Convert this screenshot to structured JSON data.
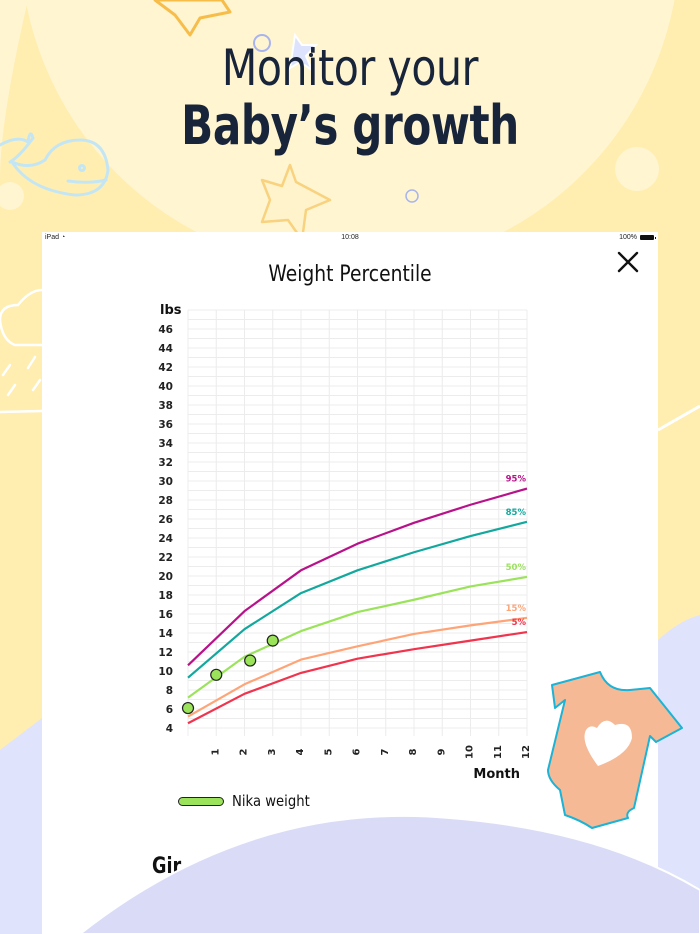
{
  "hero": {
    "line1": "Monitor your",
    "line2": "Baby’s growth"
  },
  "statusbar": {
    "device": "iPad",
    "time": "10:08",
    "battery": "100%"
  },
  "screen": {
    "title": "Weight Percentile",
    "close_icon": "close-icon",
    "legend_label": "Nika weight",
    "section_heading_partial": "Gir"
  },
  "colors": {
    "background": "#ffeeb0",
    "text_dark": "#18243a",
    "p95": "#b8128a",
    "p85": "#13a89e",
    "p50": "#9be35a",
    "p15": "#ffa477",
    "p5": "#f0344e",
    "point_fill": "#9be35a",
    "onesie": "#f5b995",
    "onesie_outline": "#1bb3d6",
    "lavender": "#dcdef8"
  },
  "chart_data": {
    "type": "line",
    "title": "Weight Percentile",
    "xlabel": "Month",
    "ylabel": "lbs",
    "x": [
      0,
      1,
      2,
      3,
      4,
      5,
      6,
      7,
      8,
      9,
      10,
      11,
      12
    ],
    "x_tick_labels": [
      "1",
      "2",
      "3",
      "4",
      "5",
      "6",
      "7",
      "8",
      "9",
      "10",
      "11",
      "12"
    ],
    "y_tick_labels": [
      "46",
      "44",
      "42",
      "40",
      "38",
      "36",
      "34",
      "32",
      "30",
      "28",
      "26",
      "24",
      "22",
      "20",
      "18",
      "16",
      "14",
      "12",
      "10",
      "8",
      "6",
      "4"
    ],
    "xlim": [
      0,
      12
    ],
    "ylim": [
      3,
      48
    ],
    "grid": true,
    "series": [
      {
        "name": "95%",
        "color": "#b8128a",
        "x": [
          0,
          2,
          4,
          6,
          8,
          10,
          12
        ],
        "values": [
          10.6,
          16.3,
          20.6,
          23.4,
          25.6,
          27.5,
          29.2
        ]
      },
      {
        "name": "85%",
        "color": "#13a89e",
        "x": [
          0,
          2,
          4,
          6,
          8,
          10,
          12
        ],
        "values": [
          9.3,
          14.4,
          18.2,
          20.6,
          22.5,
          24.2,
          25.7
        ]
      },
      {
        "name": "50%",
        "color": "#9be35a",
        "x": [
          0,
          2,
          4,
          6,
          8,
          10,
          12
        ],
        "values": [
          7.2,
          11.5,
          14.2,
          16.2,
          17.5,
          18.9,
          19.9
        ]
      },
      {
        "name": "15%",
        "color": "#ffa477",
        "x": [
          0,
          2,
          4,
          6,
          8,
          10,
          12
        ],
        "values": [
          5.2,
          8.6,
          11.2,
          12.6,
          13.9,
          14.8,
          15.6
        ]
      },
      {
        "name": "5%",
        "color": "#f0344e",
        "x": [
          0,
          2,
          4,
          6,
          8,
          10,
          12
        ],
        "values": [
          4.5,
          7.6,
          9.8,
          11.3,
          12.3,
          13.2,
          14.1
        ]
      },
      {
        "name": "Nika weight",
        "type": "scatter",
        "color": "#9be35a",
        "x": [
          0,
          1,
          2.2,
          3
        ],
        "values": [
          6.1,
          9.6,
          11.1,
          13.2
        ]
      }
    ],
    "legend": [
      "Nika weight"
    ],
    "legend_position": "bottom-left"
  }
}
